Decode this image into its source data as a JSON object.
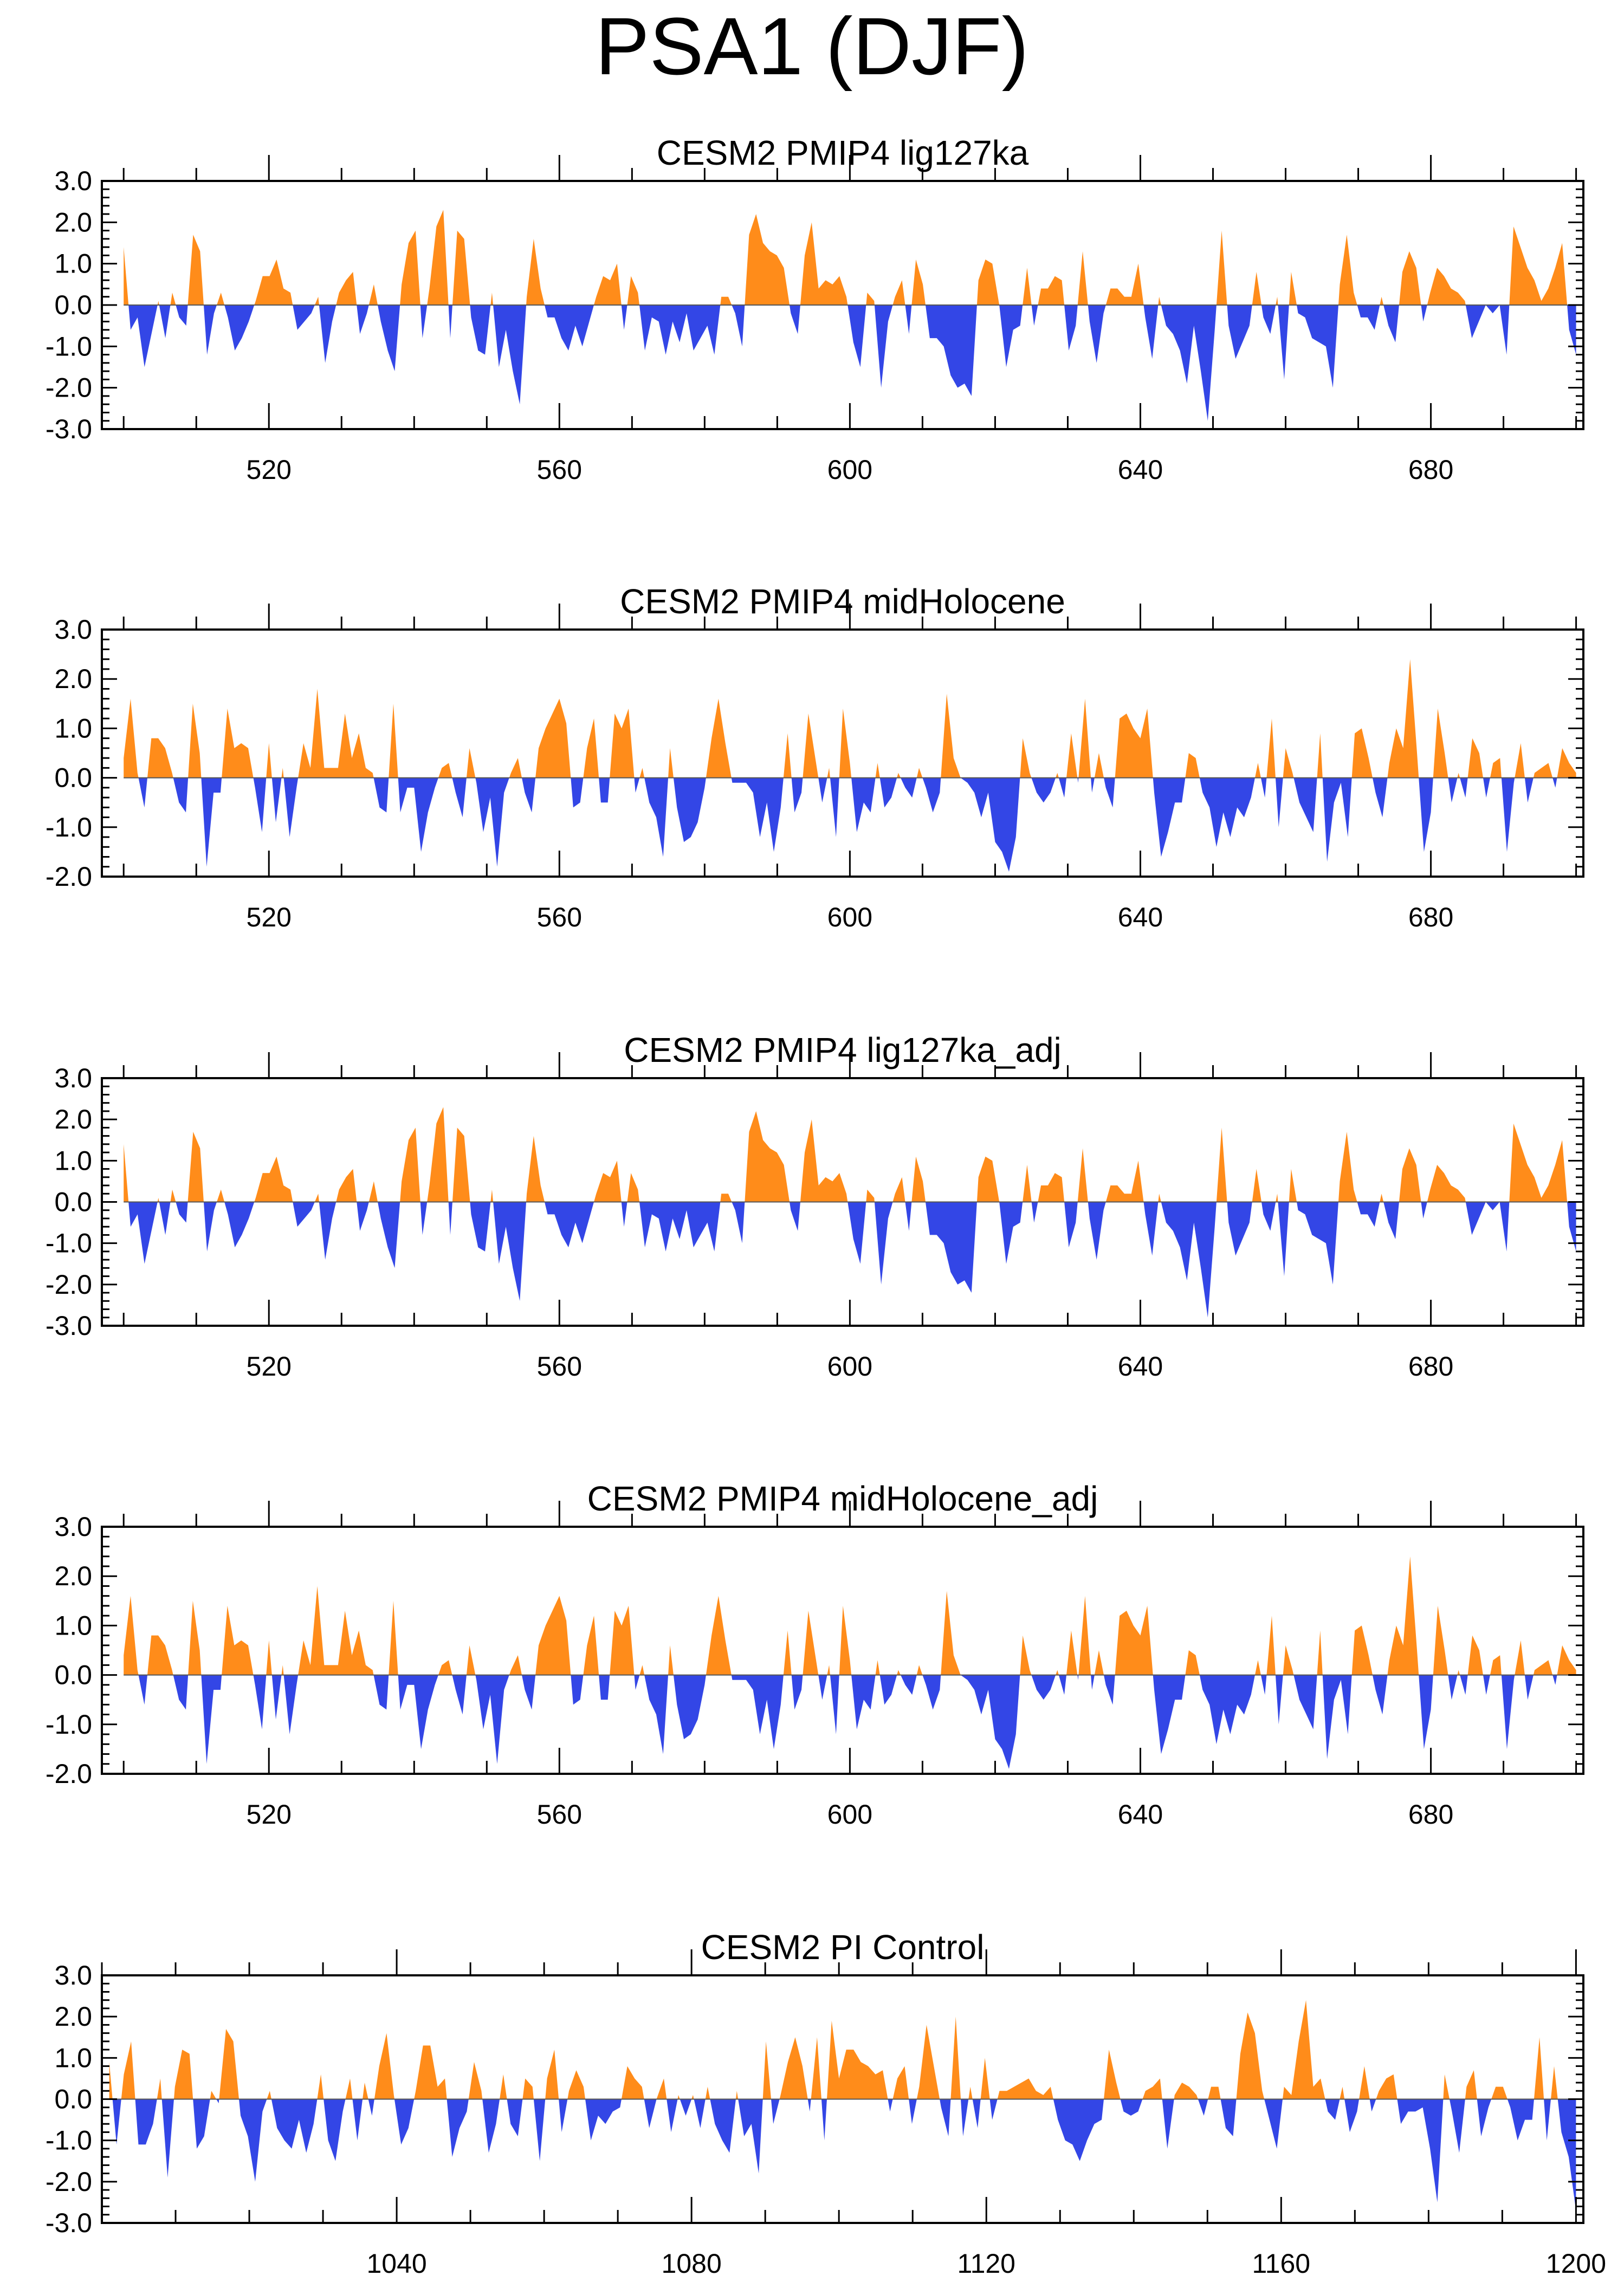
{
  "title": "PSA1 (DJF)",
  "colors": {
    "positive": "#ff8c1a",
    "negative": "#3346e6",
    "frame": "#000000",
    "zero_line": "#000000"
  },
  "chart_data": [
    {
      "type": "area",
      "title": "CESM2 PMIP4 lig127ka",
      "x_start": 500,
      "x_end": 700,
      "xlim": [
        497,
        701
      ],
      "ylim": [
        -3.0,
        3.0
      ],
      "yticks": [
        -3.0,
        -2.0,
        -1.0,
        0.0,
        1.0,
        2.0,
        3.0
      ],
      "ytick_labels": [
        "-3.0",
        "-2.0",
        "-1.0",
        "0.0",
        "1.0",
        "2.0",
        "3.0"
      ],
      "xticks": [
        520,
        560,
        600,
        640,
        680
      ],
      "xtick_labels": [
        "520",
        "560",
        "600",
        "640",
        "680"
      ],
      "values": [
        1.4,
        -0.6,
        -0.3,
        -1.5,
        -0.7,
        0.1,
        -0.8,
        0.3,
        -0.3,
        -0.5,
        1.7,
        1.3,
        -1.2,
        -0.2,
        0.3,
        -0.3,
        -1.1,
        -0.8,
        -0.4,
        0.1,
        0.7,
        0.7,
        1.1,
        0.4,
        0.3,
        -0.6,
        -0.4,
        -0.2,
        0.2,
        -1.4,
        -0.4,
        0.3,
        0.6,
        0.8,
        -0.7,
        -0.2,
        0.5,
        -0.4,
        -1.1,
        -1.6,
        0.5,
        1.5,
        1.8,
        -0.8,
        0.4,
        1.9,
        2.3,
        -0.8,
        1.8,
        1.6,
        -0.3,
        -1.1,
        -1.2,
        0.3,
        -1.5,
        -0.6,
        -1.6,
        -2.4,
        0.2,
        1.6,
        0.4,
        -0.3,
        -0.3,
        -0.8,
        -1.1,
        -0.5,
        -1.0,
        -0.4,
        0.2,
        0.7,
        0.6,
        1.0,
        -0.6,
        0.7,
        0.3,
        -1.1,
        -0.3,
        -0.4,
        -1.2,
        -0.4,
        -0.9,
        -0.2,
        -1.1,
        -0.8,
        -0.5,
        -1.2,
        0.2,
        0.2,
        -0.2,
        -1.0,
        1.7,
        2.2,
        1.5,
        1.3,
        1.2,
        0.9,
        -0.2,
        -0.7,
        1.2,
        2.0,
        0.4,
        0.6,
        0.5,
        0.7,
        0.2,
        -0.9,
        -1.5,
        0.3,
        0.1,
        -2.0,
        -0.4,
        0.2,
        0.6,
        -0.7,
        1.1,
        0.5,
        -0.8,
        -0.8,
        -1.0,
        -1.7,
        -2.0,
        -1.9,
        -2.2,
        0.6,
        1.1,
        1.0,
        0.0,
        -1.5,
        -0.6,
        -0.5,
        0.9,
        -0.5,
        0.4,
        0.4,
        0.7,
        0.6,
        -1.1,
        -0.5,
        1.3,
        -0.4,
        -1.4,
        -0.2,
        0.4,
        0.4,
        0.2,
        0.2,
        1.0,
        -0.3,
        -1.3,
        0.2,
        -0.5,
        -0.7,
        -1.1,
        -1.9,
        -0.5,
        -1.6,
        -2.8,
        -0.6,
        1.8,
        -0.5,
        -1.3,
        -0.9,
        -0.5,
        0.8,
        -0.3,
        -0.7,
        0.2,
        -1.8,
        0.8,
        -0.2,
        -0.3,
        -0.8,
        -0.9,
        -1.0,
        -2.0,
        0.5,
        1.7,
        0.3,
        -0.3,
        -0.3,
        -0.6,
        0.2,
        -0.5,
        -0.9,
        0.8,
        1.3,
        0.9,
        -0.4,
        0.3,
        0.9,
        0.7,
        0.4,
        0.3,
        0.1,
        -0.8,
        -0.4,
        0.0,
        -0.2,
        0.0,
        -1.2,
        1.9,
        1.4,
        0.9,
        0.6,
        0.1,
        0.4,
        0.9,
        1.5,
        -0.6,
        -1.2
      ]
    },
    {
      "type": "area",
      "title": "CESM2 PMIP4 midHolocene",
      "x_start": 500,
      "x_end": 700,
      "xlim": [
        497,
        701
      ],
      "ylim": [
        -2.0,
        3.0
      ],
      "yticks": [
        -2.0,
        -1.0,
        0.0,
        1.0,
        2.0,
        3.0
      ],
      "ytick_labels": [
        "-2.0",
        "-1.0",
        "0.0",
        "1.0",
        "2.0",
        "3.0"
      ],
      "xticks": [
        520,
        560,
        600,
        640,
        680
      ],
      "xtick_labels": [
        "520",
        "560",
        "600",
        "640",
        "680"
      ],
      "values": [
        0.4,
        1.6,
        0.1,
        -0.6,
        0.8,
        0.8,
        0.6,
        0.1,
        -0.5,
        -0.7,
        1.5,
        0.5,
        -1.8,
        -0.3,
        -0.3,
        1.4,
        0.6,
        0.7,
        0.6,
        -0.2,
        -1.1,
        0.7,
        -0.9,
        0.2,
        -1.2,
        -0.2,
        0.7,
        0.2,
        1.8,
        0.2,
        0.2,
        0.2,
        1.3,
        0.4,
        0.9,
        0.2,
        0.1,
        -0.6,
        -0.7,
        1.5,
        -0.7,
        -0.2,
        -0.2,
        -1.5,
        -0.7,
        -0.2,
        0.2,
        0.3,
        -0.3,
        -0.8,
        0.6,
        -0.1,
        -1.1,
        -0.4,
        -1.8,
        -0.3,
        0.1,
        0.4,
        -0.3,
        -0.7,
        0.6,
        1.0,
        1.3,
        1.6,
        1.1,
        -0.6,
        -0.5,
        0.6,
        1.2,
        -0.5,
        -0.5,
        1.3,
        1.0,
        1.4,
        -0.3,
        0.2,
        -0.5,
        -0.8,
        -1.6,
        0.6,
        -0.6,
        -1.3,
        -1.2,
        -0.9,
        -0.2,
        0.8,
        1.6,
        0.7,
        -0.1,
        -0.1,
        -0.1,
        -0.3,
        -1.2,
        -0.5,
        -1.5,
        -0.6,
        0.9,
        -0.7,
        -0.3,
        1.3,
        0.4,
        -0.5,
        0.2,
        -1.2,
        1.4,
        0.3,
        -1.1,
        -0.5,
        -0.7,
        0.3,
        -0.6,
        -0.4,
        0.1,
        -0.2,
        -0.4,
        0.2,
        -0.2,
        -0.7,
        -0.3,
        1.7,
        0.4,
        0.0,
        -0.1,
        -0.3,
        -0.8,
        -0.3,
        -1.3,
        -1.5,
        -1.9,
        -1.2,
        0.8,
        0.1,
        -0.3,
        -0.5,
        -0.3,
        0.1,
        -0.4,
        0.9,
        -0.1,
        1.6,
        -0.3,
        0.5,
        -0.2,
        -0.6,
        1.2,
        1.3,
        1.0,
        0.8,
        1.4,
        -0.3,
        -1.6,
        -1.1,
        -0.5,
        -0.5,
        0.5,
        0.4,
        -0.3,
        -0.6,
        -1.4,
        -0.7,
        -1.2,
        -0.6,
        -0.8,
        -0.4,
        0.3,
        -0.4,
        1.2,
        -1.0,
        0.6,
        0.1,
        -0.5,
        -0.8,
        -1.1,
        0.9,
        -1.7,
        -0.5,
        -0.1,
        -1.2,
        0.9,
        1.0,
        0.4,
        -0.3,
        -0.8,
        0.3,
        1.0,
        0.6,
        2.4,
        0.5,
        -1.5,
        -0.7,
        1.4,
        0.5,
        -0.5,
        0.1,
        -0.4,
        0.8,
        0.5,
        -0.4,
        0.3,
        0.4,
        -1.5,
        -0.1,
        0.7,
        -0.5,
        0.1,
        0.2,
        0.3,
        -0.2,
        0.6,
        0.3,
        0.1
      ]
    },
    {
      "type": "area",
      "title": "CESM2 PMIP4 lig127ka_adj",
      "x_start": 500,
      "x_end": 700,
      "xlim": [
        497,
        701
      ],
      "ylim": [
        -3.0,
        3.0
      ],
      "yticks": [
        -3.0,
        -2.0,
        -1.0,
        0.0,
        1.0,
        2.0,
        3.0
      ],
      "ytick_labels": [
        "-3.0",
        "-2.0",
        "-1.0",
        "0.0",
        "1.0",
        "2.0",
        "3.0"
      ],
      "xticks": [
        520,
        560,
        600,
        640,
        680
      ],
      "xtick_labels": [
        "520",
        "560",
        "600",
        "640",
        "680"
      ],
      "values": [
        1.4,
        -0.6,
        -0.3,
        -1.5,
        -0.7,
        0.1,
        -0.8,
        0.3,
        -0.3,
        -0.5,
        1.7,
        1.3,
        -1.2,
        -0.2,
        0.3,
        -0.3,
        -1.1,
        -0.8,
        -0.4,
        0.1,
        0.7,
        0.7,
        1.1,
        0.4,
        0.3,
        -0.6,
        -0.4,
        -0.2,
        0.2,
        -1.4,
        -0.4,
        0.3,
        0.6,
        0.8,
        -0.7,
        -0.2,
        0.5,
        -0.4,
        -1.1,
        -1.6,
        0.5,
        1.5,
        1.8,
        -0.8,
        0.4,
        1.9,
        2.3,
        -0.8,
        1.8,
        1.6,
        -0.3,
        -1.1,
        -1.2,
        0.3,
        -1.5,
        -0.6,
        -1.6,
        -2.4,
        0.2,
        1.6,
        0.4,
        -0.3,
        -0.3,
        -0.8,
        -1.1,
        -0.5,
        -1.0,
        -0.4,
        0.2,
        0.7,
        0.6,
        1.0,
        -0.6,
        0.7,
        0.3,
        -1.1,
        -0.3,
        -0.4,
        -1.2,
        -0.4,
        -0.9,
        -0.2,
        -1.1,
        -0.8,
        -0.5,
        -1.2,
        0.2,
        0.2,
        -0.2,
        -1.0,
        1.7,
        2.2,
        1.5,
        1.3,
        1.2,
        0.9,
        -0.2,
        -0.7,
        1.2,
        2.0,
        0.4,
        0.6,
        0.5,
        0.7,
        0.2,
        -0.9,
        -1.5,
        0.3,
        0.1,
        -2.0,
        -0.4,
        0.2,
        0.6,
        -0.7,
        1.1,
        0.5,
        -0.8,
        -0.8,
        -1.0,
        -1.7,
        -2.0,
        -1.9,
        -2.2,
        0.6,
        1.1,
        1.0,
        0.0,
        -1.5,
        -0.6,
        -0.5,
        0.9,
        -0.5,
        0.4,
        0.4,
        0.7,
        0.6,
        -1.1,
        -0.5,
        1.3,
        -0.4,
        -1.4,
        -0.2,
        0.4,
        0.4,
        0.2,
        0.2,
        1.0,
        -0.3,
        -1.3,
        0.2,
        -0.5,
        -0.7,
        -1.1,
        -1.9,
        -0.5,
        -1.6,
        -2.8,
        -0.6,
        1.8,
        -0.5,
        -1.3,
        -0.9,
        -0.5,
        0.8,
        -0.3,
        -0.7,
        0.2,
        -1.8,
        0.8,
        -0.2,
        -0.3,
        -0.8,
        -0.9,
        -1.0,
        -2.0,
        0.5,
        1.7,
        0.3,
        -0.3,
        -0.3,
        -0.6,
        0.2,
        -0.5,
        -0.9,
        0.8,
        1.3,
        0.9,
        -0.4,
        0.3,
        0.9,
        0.7,
        0.4,
        0.3,
        0.1,
        -0.8,
        -0.4,
        0.0,
        -0.2,
        0.0,
        -1.2,
        1.9,
        1.4,
        0.9,
        0.6,
        0.1,
        0.4,
        0.9,
        1.5,
        -0.6,
        -1.2
      ]
    },
    {
      "type": "area",
      "title": "CESM2 PMIP4 midHolocene_adj",
      "x_start": 500,
      "x_end": 700,
      "xlim": [
        497,
        701
      ],
      "ylim": [
        -2.0,
        3.0
      ],
      "yticks": [
        -2.0,
        -1.0,
        0.0,
        1.0,
        2.0,
        3.0
      ],
      "ytick_labels": [
        "-2.0",
        "-1.0",
        "0.0",
        "1.0",
        "2.0",
        "3.0"
      ],
      "xticks": [
        520,
        560,
        600,
        640,
        680
      ],
      "xtick_labels": [
        "520",
        "560",
        "600",
        "640",
        "680"
      ],
      "values": [
        0.4,
        1.6,
        0.1,
        -0.6,
        0.8,
        0.8,
        0.6,
        0.1,
        -0.5,
        -0.7,
        1.5,
        0.5,
        -1.8,
        -0.3,
        -0.3,
        1.4,
        0.6,
        0.7,
        0.6,
        -0.2,
        -1.1,
        0.7,
        -0.9,
        0.2,
        -1.2,
        -0.2,
        0.7,
        0.2,
        1.8,
        0.2,
        0.2,
        0.2,
        1.3,
        0.4,
        0.9,
        0.2,
        0.1,
        -0.6,
        -0.7,
        1.5,
        -0.7,
        -0.2,
        -0.2,
        -1.5,
        -0.7,
        -0.2,
        0.2,
        0.3,
        -0.3,
        -0.8,
        0.6,
        -0.1,
        -1.1,
        -0.4,
        -1.8,
        -0.3,
        0.1,
        0.4,
        -0.3,
        -0.7,
        0.6,
        1.0,
        1.3,
        1.6,
        1.1,
        -0.6,
        -0.5,
        0.6,
        1.2,
        -0.5,
        -0.5,
        1.3,
        1.0,
        1.4,
        -0.3,
        0.2,
        -0.5,
        -0.8,
        -1.6,
        0.6,
        -0.6,
        -1.3,
        -1.2,
        -0.9,
        -0.2,
        0.8,
        1.6,
        0.7,
        -0.1,
        -0.1,
        -0.1,
        -0.3,
        -1.2,
        -0.5,
        -1.5,
        -0.6,
        0.9,
        -0.7,
        -0.3,
        1.3,
        0.4,
        -0.5,
        0.2,
        -1.2,
        1.4,
        0.3,
        -1.1,
        -0.5,
        -0.7,
        0.3,
        -0.6,
        -0.4,
        0.1,
        -0.2,
        -0.4,
        0.2,
        -0.2,
        -0.7,
        -0.3,
        1.7,
        0.4,
        0.0,
        -0.1,
        -0.3,
        -0.8,
        -0.3,
        -1.3,
        -1.5,
        -1.9,
        -1.2,
        0.8,
        0.1,
        -0.3,
        -0.5,
        -0.3,
        0.1,
        -0.4,
        0.9,
        -0.1,
        1.6,
        -0.3,
        0.5,
        -0.2,
        -0.6,
        1.2,
        1.3,
        1.0,
        0.8,
        1.4,
        -0.3,
        -1.6,
        -1.1,
        -0.5,
        -0.5,
        0.5,
        0.4,
        -0.3,
        -0.6,
        -1.4,
        -0.7,
        -1.2,
        -0.6,
        -0.8,
        -0.4,
        0.3,
        -0.4,
        1.2,
        -1.0,
        0.6,
        0.1,
        -0.5,
        -0.8,
        -1.1,
        0.9,
        -1.7,
        -0.5,
        -0.1,
        -1.2,
        0.9,
        1.0,
        0.4,
        -0.3,
        -0.8,
        0.3,
        1.0,
        0.6,
        2.4,
        0.5,
        -1.5,
        -0.7,
        1.4,
        0.5,
        -0.5,
        0.1,
        -0.4,
        0.8,
        0.5,
        -0.4,
        0.3,
        0.4,
        -1.5,
        -0.1,
        0.7,
        -0.5,
        0.1,
        0.2,
        0.3,
        -0.2,
        0.6,
        0.3,
        0.1
      ]
    },
    {
      "type": "area",
      "title": "CESM2 PI Control",
      "x_start": 1001,
      "x_end": 1200,
      "xlim": [
        1000,
        1201
      ],
      "ylim": [
        -3.0,
        3.0
      ],
      "yticks": [
        -3.0,
        -2.0,
        -1.0,
        0.0,
        1.0,
        2.0,
        3.0
      ],
      "ytick_labels": [
        "-3.0",
        "-2.0",
        "-1.0",
        "0.0",
        "1.0",
        "2.0",
        "3.0"
      ],
      "xticks": [
        1040,
        1080,
        1120,
        1160,
        1200
      ],
      "xtick_labels": [
        "1040",
        "1080",
        "1120",
        "1160",
        "1200"
      ],
      "values": [
        0.9,
        -1.1,
        0.6,
        1.4,
        -1.1,
        -1.1,
        -0.6,
        0.5,
        -1.9,
        0.3,
        1.2,
        1.1,
        -1.2,
        -0.9,
        0.2,
        -0.1,
        1.7,
        1.4,
        -0.4,
        -0.9,
        -2.0,
        -0.3,
        0.2,
        -0.7,
        -1.0,
        -1.2,
        -0.5,
        -1.3,
        -0.6,
        0.6,
        -1.0,
        -1.5,
        -0.3,
        0.5,
        -1.0,
        0.4,
        -0.4,
        0.8,
        1.6,
        0.1,
        -1.1,
        -0.7,
        0.2,
        1.3,
        1.3,
        0.3,
        0.5,
        -1.4,
        -0.7,
        -0.3,
        0.9,
        0.2,
        -1.3,
        -0.6,
        0.6,
        -0.6,
        -0.9,
        0.5,
        0.3,
        -1.5,
        0.5,
        1.2,
        -0.8,
        0.2,
        0.7,
        0.3,
        -1.0,
        -0.4,
        -0.6,
        -0.3,
        -0.2,
        0.8,
        0.5,
        0.3,
        -0.7,
        0.0,
        0.5,
        -0.8,
        0.1,
        -0.4,
        0.1,
        -0.7,
        0.3,
        -0.6,
        -1.0,
        -1.3,
        0.2,
        -0.9,
        -0.6,
        -1.8,
        1.4,
        -0.6,
        0.1,
        0.9,
        1.5,
        0.8,
        -0.3,
        1.5,
        -1.0,
        1.9,
        0.5,
        1.2,
        1.2,
        0.9,
        0.8,
        0.6,
        0.7,
        -0.3,
        0.5,
        0.8,
        -0.6,
        0.3,
        1.8,
        0.8,
        -0.2,
        -0.9,
        2.0,
        -0.9,
        0.3,
        -0.7,
        1.0,
        -0.5,
        0.2,
        0.2,
        0.3,
        0.4,
        0.5,
        0.2,
        0.1,
        0.3,
        -0.5,
        -1.0,
        -1.1,
        -1.5,
        -1.0,
        -0.6,
        -0.5,
        1.2,
        0.4,
        -0.3,
        -0.4,
        -0.3,
        0.2,
        0.3,
        0.5,
        -1.2,
        0.1,
        0.4,
        0.3,
        0.1,
        -0.4,
        0.3,
        0.3,
        -0.7,
        -0.9,
        1.1,
        2.1,
        1.6,
        0.2,
        -0.5,
        -1.2,
        0.3,
        0.1,
        1.4,
        2.4,
        0.3,
        0.5,
        -0.3,
        -0.5,
        0.3,
        -0.8,
        -0.3,
        0.8,
        -0.3,
        0.2,
        0.5,
        0.6,
        -0.6,
        -0.3,
        -0.3,
        -0.2,
        -1.2,
        -2.5,
        0.6,
        -0.3,
        -1.3,
        0.3,
        0.7,
        -0.9,
        -0.2,
        0.3,
        0.3,
        -0.2,
        -1.0,
        -0.5,
        -0.5,
        1.5,
        -1.0,
        0.8,
        -0.8,
        -1.4,
        -2.7
      ]
    }
  ]
}
